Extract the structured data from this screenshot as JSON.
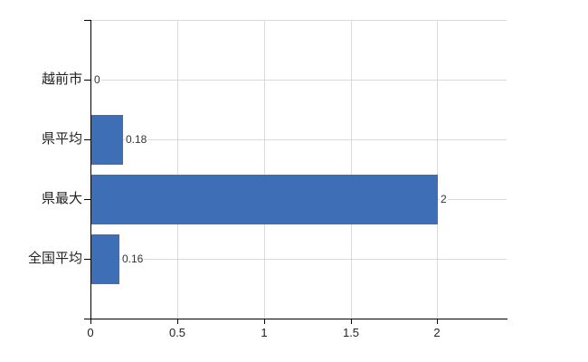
{
  "chart_data": {
    "type": "bar",
    "orientation": "horizontal",
    "title": "",
    "xlabel": "",
    "ylabel": "",
    "categories": [
      "越前市",
      "県平均",
      "県最大",
      "全国平均"
    ],
    "values": [
      0,
      0.18,
      2,
      0.16
    ],
    "value_labels": [
      "0",
      "0.18",
      "2",
      "0.16"
    ],
    "xticks": [
      0,
      0.5,
      1,
      1.5,
      2
    ],
    "xtick_labels": [
      "0",
      "0.5",
      "1",
      "1.5",
      "2"
    ],
    "xlim": [
      0,
      2.4
    ],
    "grid": true,
    "legend": false,
    "colors": {
      "bar": "#3e6eb5",
      "grid": "#d9d9d9",
      "axis": "#000000",
      "text": "#222222",
      "value_text": "#333333",
      "background": "#ffffff"
    }
  }
}
